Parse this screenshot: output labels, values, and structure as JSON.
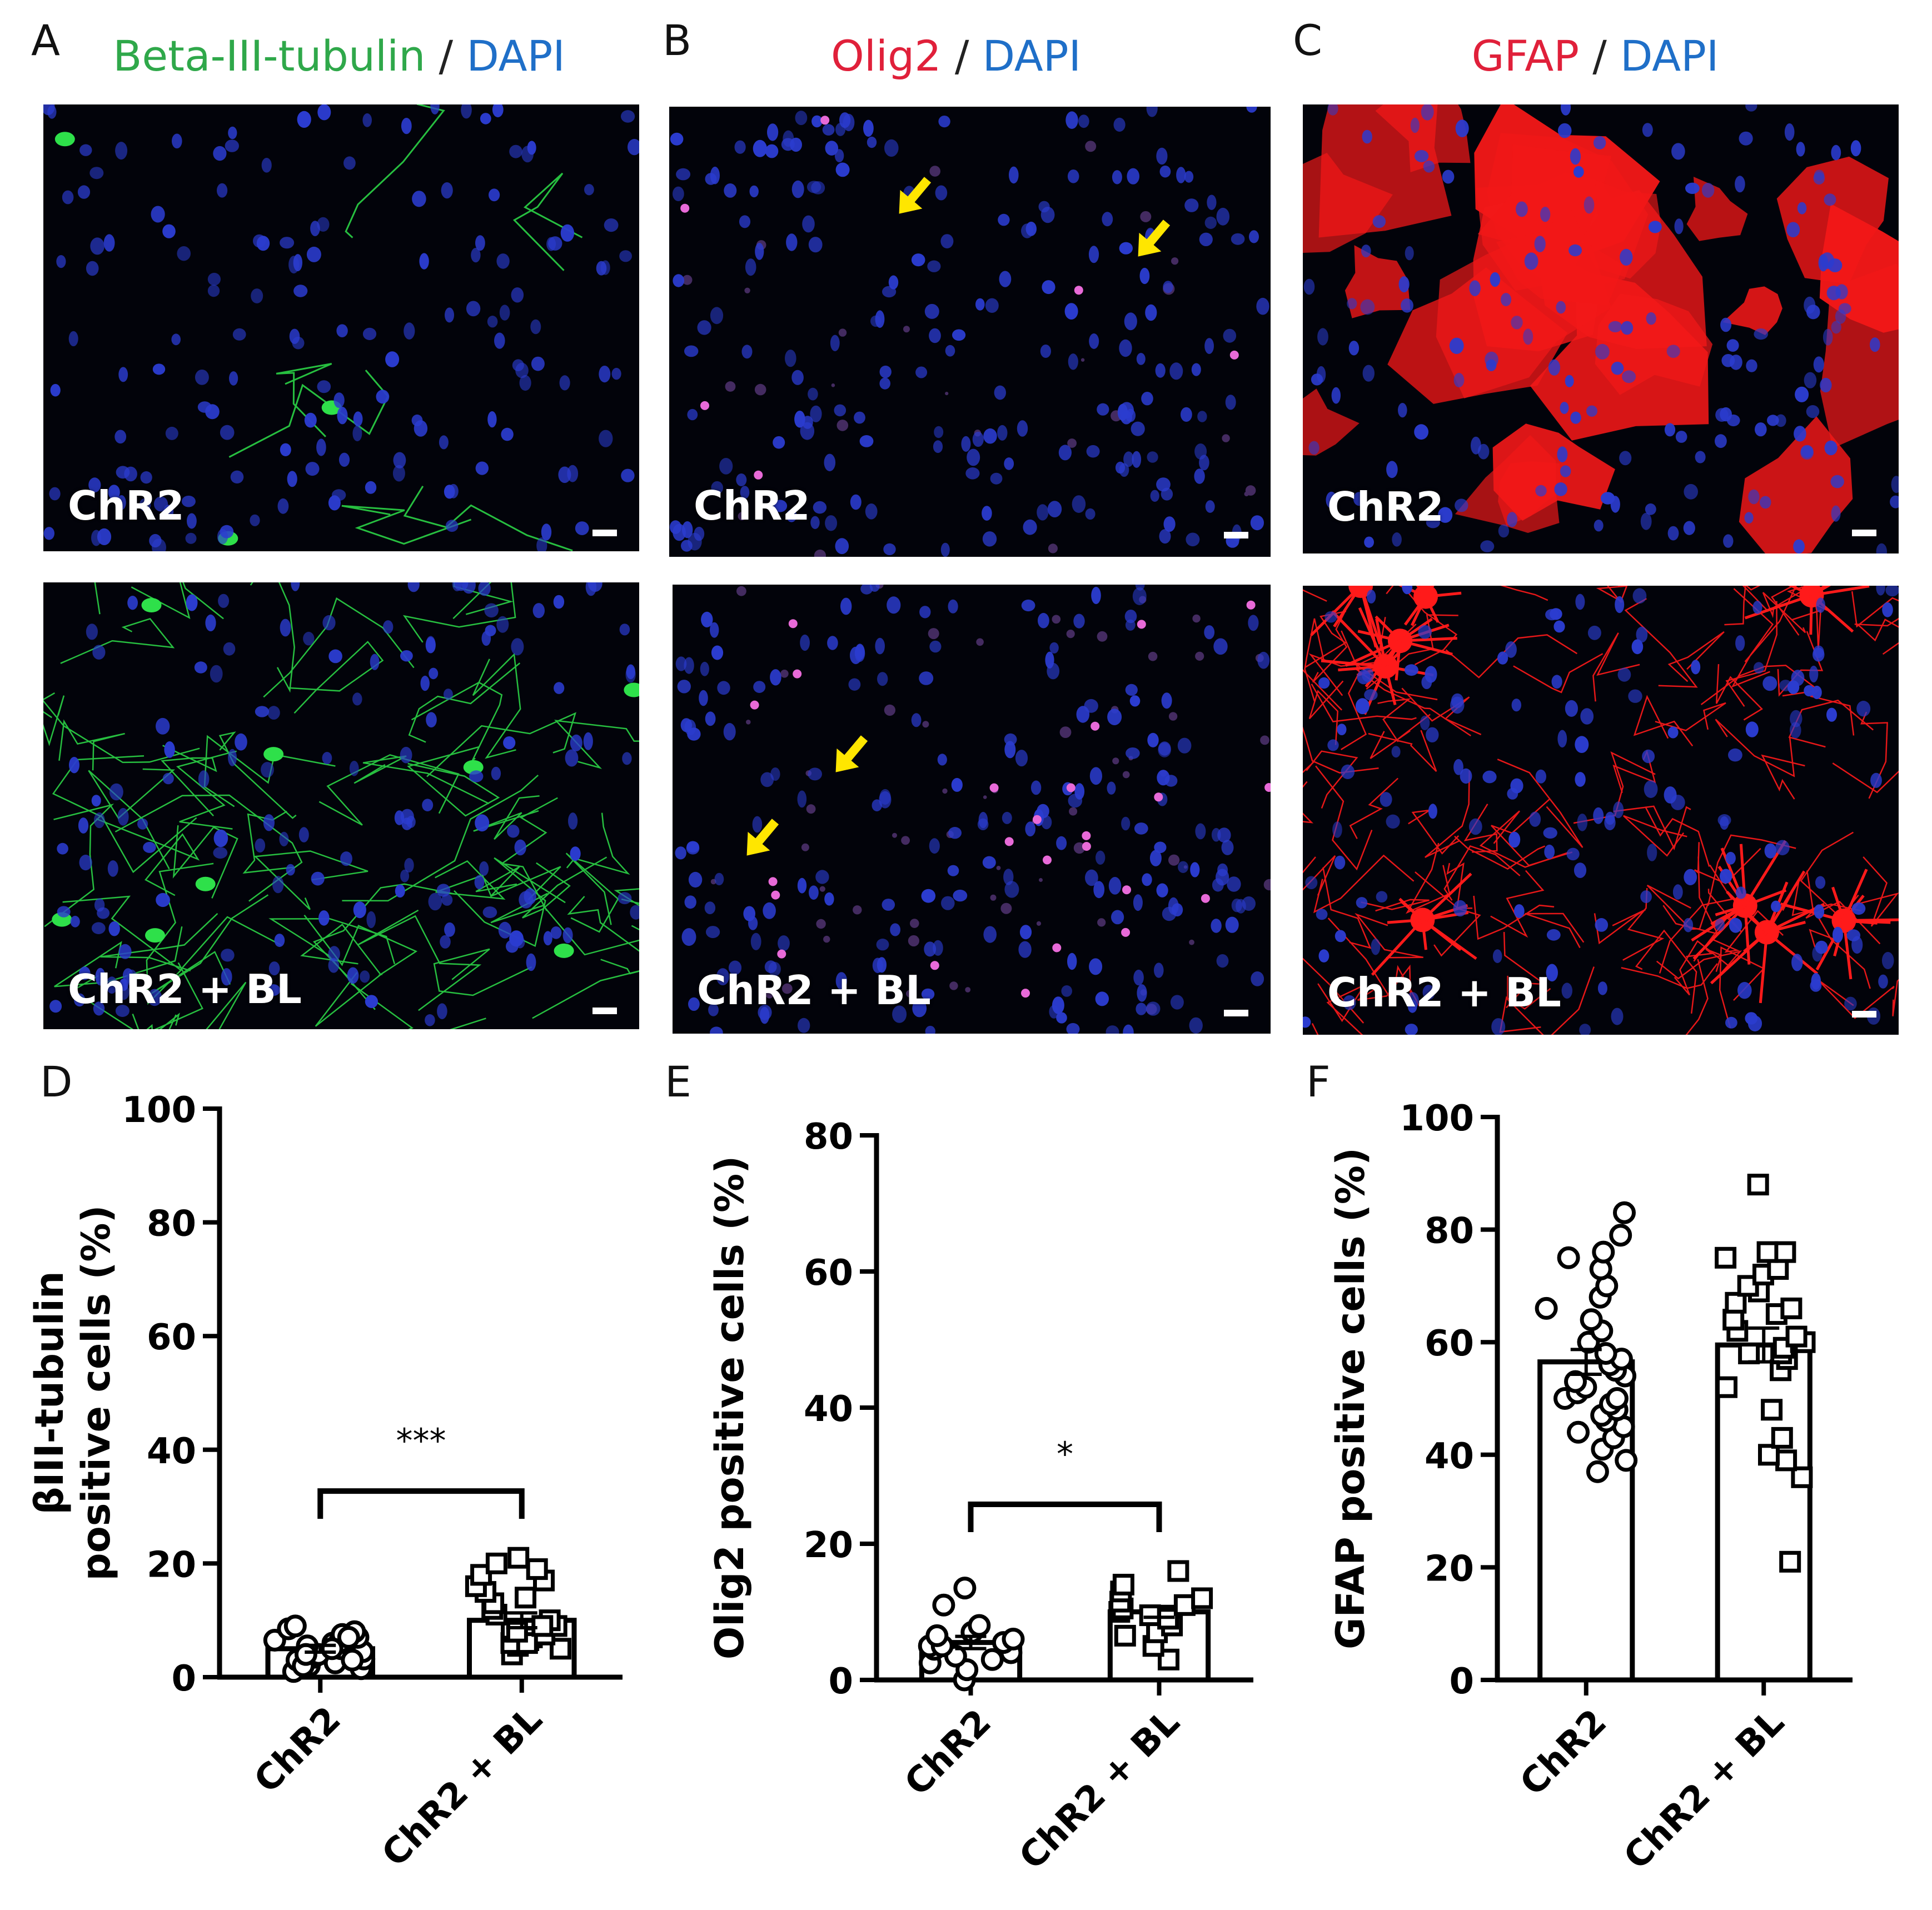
{
  "panels": {
    "A": {
      "letter": "A",
      "title_parts": [
        "Beta-III-tubulin",
        " / ",
        "DAPI"
      ],
      "title_colors": [
        "#2fa84a",
        "#222222",
        "#1f6fc8"
      ]
    },
    "B": {
      "letter": "B",
      "title_parts": [
        "Olig2",
        " / ",
        "DAPI"
      ],
      "title_colors": [
        "#e0203a",
        "#222222",
        "#1f6fc8"
      ]
    },
    "C": {
      "letter": "C",
      "title_parts": [
        "GFAP",
        " / ",
        "DAPI"
      ],
      "title_colors": [
        "#e0203a",
        "#222222",
        "#1f6fc8"
      ]
    },
    "D": {
      "letter": "D"
    },
    "E": {
      "letter": "E"
    },
    "F": {
      "letter": "F"
    }
  },
  "image_labels": {
    "top": "ChR2",
    "bottom": "ChR2 + BL"
  },
  "colors": {
    "dapi": "#2b3ccf",
    "tubulin": "#2ee04a",
    "olig2": "#e86ad8",
    "gfap": "#ff1a1a",
    "arrow": "#ffe600",
    "chart_ink": "#000000"
  },
  "chart_data": [
    {
      "id": "D",
      "type": "bar",
      "categories": [
        "ChR2",
        "ChR2 + BL"
      ],
      "ylabel_lines": [
        "βIII-tubulin",
        "positive cells (%)"
      ],
      "ylim": [
        0,
        100
      ],
      "yticks": [
        0,
        20,
        40,
        60,
        80,
        100
      ],
      "grid": false,
      "bars": [
        5,
        10
      ],
      "errors": [
        0.6,
        1.3
      ],
      "points": [
        [
          1,
          1.5,
          2,
          2.5,
          3,
          3.2,
          3.5,
          4,
          4,
          4.5,
          5,
          5.5,
          6,
          6,
          6.5,
          7,
          7.5,
          8,
          8.5,
          9,
          2,
          3,
          5,
          7,
          4
        ],
        [
          4,
          5,
          5.5,
          6,
          6.5,
          7,
          7.5,
          8,
          8.5,
          9,
          10,
          11,
          12,
          13,
          14,
          15,
          16,
          17,
          18,
          19,
          20,
          21,
          6,
          8,
          9
        ]
      ],
      "markers": [
        "circle",
        "square"
      ],
      "significance": "***"
    },
    {
      "id": "E",
      "type": "bar",
      "categories": [
        "ChR2",
        "ChR2 + BL"
      ],
      "ylabel_lines": [
        "Olig2 positive cells (%)"
      ],
      "ylim": [
        0,
        80
      ],
      "yticks": [
        0,
        20,
        40,
        60,
        80
      ],
      "grid": false,
      "bars": [
        5.5,
        10
      ],
      "errors": [
        0.9,
        0.8
      ],
      "points": [
        [
          0,
          1.5,
          2.5,
          3,
          3.5,
          4,
          4.5,
          5,
          5,
          5.5,
          6,
          6.5,
          7,
          8,
          11,
          13.5
        ],
        [
          3,
          5,
          6.5,
          7,
          8,
          9,
          9.5,
          10,
          10.5,
          11,
          11.5,
          12,
          13,
          14,
          16
        ]
      ],
      "markers": [
        "circle",
        "square"
      ],
      "significance": "*"
    },
    {
      "id": "F",
      "type": "bar",
      "categories": [
        "ChR2",
        "ChR2 + BL"
      ],
      "ylabel_lines": [
        "GFAP positive cells (%)"
      ],
      "ylim": [
        0,
        100
      ],
      "yticks": [
        0,
        20,
        40,
        60,
        80,
        100
      ],
      "grid": false,
      "bars": [
        56.5,
        59.5
      ],
      "errors": [
        2.2,
        3
      ],
      "points": [
        [
          37,
          39,
          41,
          43,
          44,
          45,
          46,
          47,
          48,
          49,
          50,
          50,
          51,
          52,
          53,
          54,
          55,
          56,
          57,
          58,
          60,
          62,
          64,
          66,
          68,
          70,
          73,
          75,
          76,
          79,
          83
        ],
        [
          21,
          36,
          39,
          40,
          43,
          48,
          52,
          55,
          57,
          58,
          58,
          59,
          60,
          60,
          61,
          62,
          64,
          65,
          66,
          67,
          69,
          70,
          72,
          73,
          75,
          76,
          76,
          88
        ]
      ],
      "markers": [
        "circle",
        "square"
      ],
      "significance": ""
    }
  ]
}
